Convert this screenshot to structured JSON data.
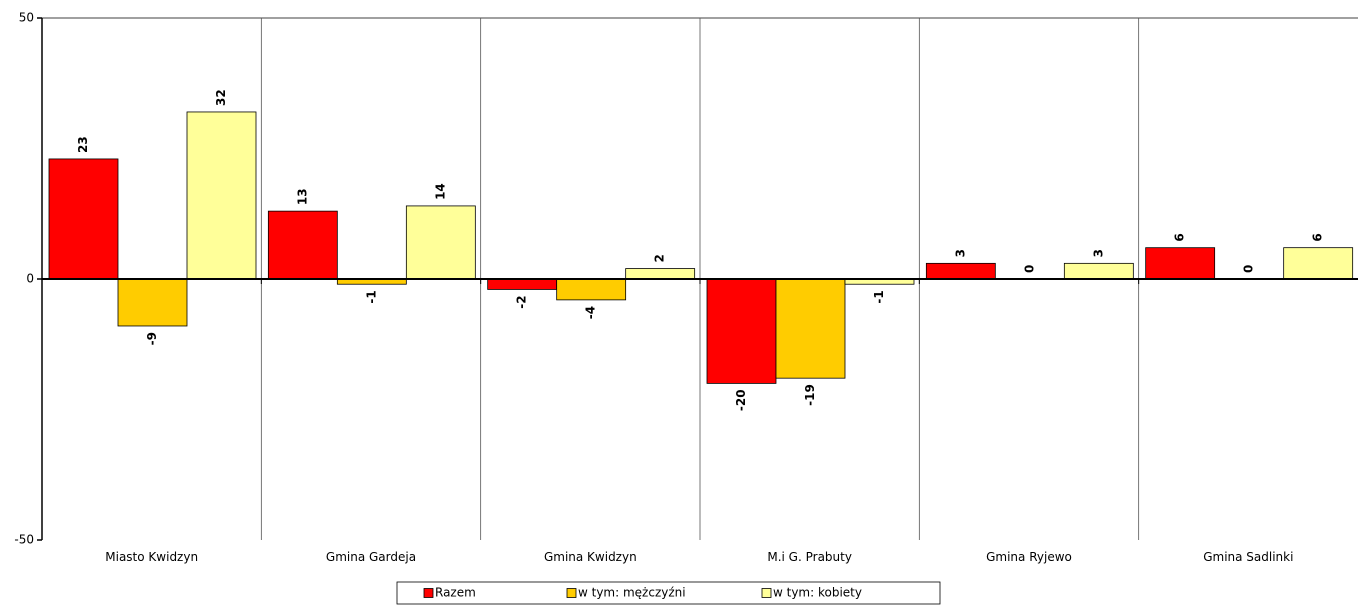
{
  "chart_data": {
    "type": "bar",
    "categories": [
      "Miasto Kwidzyn",
      "Gmina Gardeja",
      "Gmina Kwidzyn",
      "M.i G. Prabuty",
      "Gmina Ryjewo",
      "Gmina Sadlinki"
    ],
    "series": [
      {
        "name": "Razem",
        "color": "#ff0000",
        "values": [
          23,
          13,
          -2,
          -20,
          3,
          6
        ]
      },
      {
        "name": "w tym: mężczyźni",
        "color": "#ffcc00",
        "values": [
          -9,
          -1,
          -4,
          -19,
          0,
          0
        ]
      },
      {
        "name": "w tym: kobiety",
        "color": "#ffff99",
        "values": [
          32,
          14,
          2,
          -1,
          3,
          6
        ]
      }
    ],
    "ylim": [
      -50,
      50
    ],
    "yticks": [
      {
        "value": 50,
        "label": "50"
      },
      {
        "value": 0,
        "label": "0"
      },
      {
        "value": -50,
        "label": "-50"
      }
    ],
    "grid": "vertical-category-separators",
    "legend_position": "bottom-center",
    "title": "",
    "xlabel": "",
    "ylabel": ""
  }
}
